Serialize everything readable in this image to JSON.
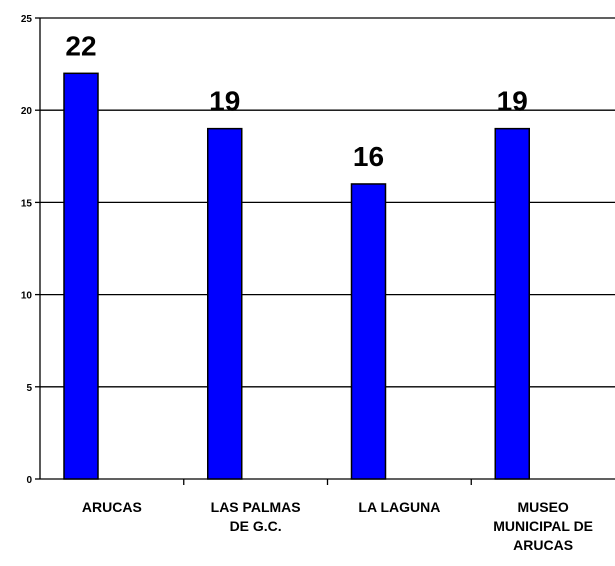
{
  "chart_data": {
    "type": "bar",
    "categories": [
      [
        "ARUCAS"
      ],
      [
        "LAS PALMAS",
        "DE G.C."
      ],
      [
        "LA LAGUNA"
      ],
      [
        "MUSEO",
        "MUNICIPAL DE",
        "ARUCAS"
      ]
    ],
    "values": [
      22,
      19,
      16,
      19
    ],
    "data_labels": [
      "22",
      "19",
      "16",
      "19"
    ],
    "yticks": [
      "0",
      "5",
      "10",
      "15",
      "20",
      "25"
    ],
    "ylim": [
      0,
      25
    ],
    "grid": true,
    "legend": "none",
    "colors": {
      "bar_fill": "#0000ff",
      "bar_stroke": "#000000",
      "grid": "#000000",
      "background": "#ffffff"
    }
  }
}
